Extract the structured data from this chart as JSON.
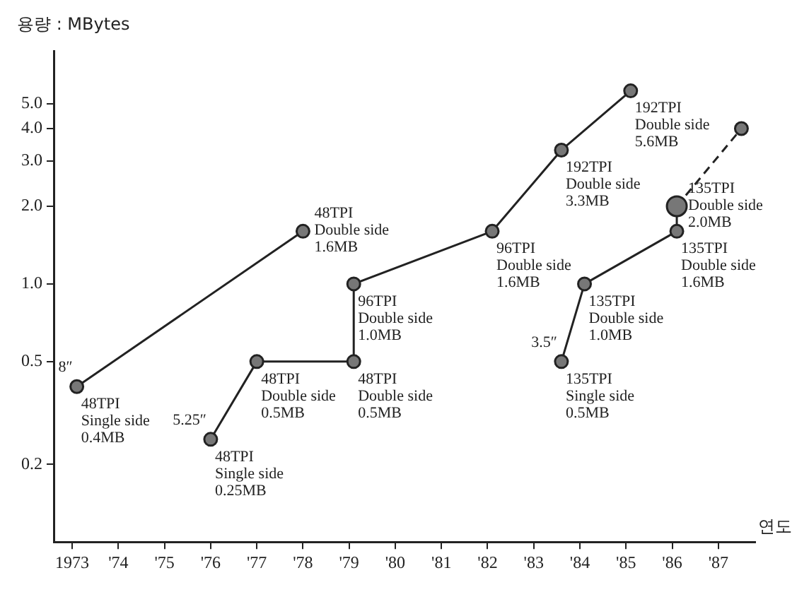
{
  "chart_data": {
    "type": "line",
    "xlabel": "연도",
    "ylabel": "용량 : MBytes",
    "log": "y",
    "grid": false,
    "legend": false,
    "marker": "circle",
    "line_style": "solid",
    "xlim": [
      1972.6,
      1987.8
    ],
    "xticks": [
      {
        "value": 1973,
        "label": "1973"
      },
      {
        "value": 1974,
        "label": "'74"
      },
      {
        "value": 1975,
        "label": "'75"
      },
      {
        "value": 1976,
        "label": "'76"
      },
      {
        "value": 1977,
        "label": "'77"
      },
      {
        "value": 1978,
        "label": "'78"
      },
      {
        "value": 1979,
        "label": "'79"
      },
      {
        "value": 1980,
        "label": "'80"
      },
      {
        "value": 1981,
        "label": "'81"
      },
      {
        "value": 1982,
        "label": "'82"
      },
      {
        "value": 1983,
        "label": "'83"
      },
      {
        "value": 1984,
        "label": "'84"
      },
      {
        "value": 1985,
        "label": "'85"
      },
      {
        "value": 1986,
        "label": "'86"
      },
      {
        "value": 1987,
        "label": "'87"
      }
    ],
    "ylim": [
      0.1,
      8
    ],
    "yticks": [
      {
        "value": 0.2,
        "label": "0.2"
      },
      {
        "value": 0.5,
        "label": "0.5"
      },
      {
        "value": 1,
        "label": "1.0"
      },
      {
        "value": 2,
        "label": "2.0"
      },
      {
        "value": 3,
        "label": "3.0"
      },
      {
        "value": 4,
        "label": "4.0"
      },
      {
        "value": 5,
        "label": "5.0"
      }
    ],
    "series": [
      {
        "name": "8″",
        "color": "#222222",
        "x": [
          1973.1,
          1978.0
        ],
        "values": [
          0.4,
          1.6
        ]
      },
      {
        "name": "5.25″",
        "color": "#222222",
        "x": [
          1976.0,
          1977.0,
          1979.1,
          1979.1,
          1982.1,
          1983.6,
          1985.1
        ],
        "values": [
          0.25,
          0.5,
          0.5,
          1.0,
          1.6,
          3.3,
          5.6
        ]
      },
      {
        "name": "3.5″",
        "color": "#222222",
        "x": [
          1983.6,
          1984.1,
          1986.1,
          1986.1
        ],
        "values": [
          0.5,
          1.0,
          1.6,
          2.0
        ]
      },
      {
        "color": "#222222",
        "line_style": "dashed",
        "x": [
          1986.1,
          1987.5
        ],
        "values": [
          2.0,
          4.0
        ]
      }
    ],
    "annotations": [
      {
        "text": "48TPI\nSingle side\n0.4MB",
        "x": 1973.1,
        "y": 0.4
      },
      {
        "text": "48TPI\nDouble side\n1.6MB",
        "x": 1978.0,
        "y": 1.6
      },
      {
        "text": "48TPI\nSingle side\n0.25MB",
        "x": 1976.0,
        "y": 0.25
      },
      {
        "text": "48TPI\nDouble side\n0.5MB",
        "x": 1977.0,
        "y": 0.5
      },
      {
        "text": "48TPI\nDouble side\n0.5MB",
        "x": 1979.1,
        "y": 0.5
      },
      {
        "text": "96TPI\nDouble side\n1.0MB",
        "x": 1979.1,
        "y": 1.0
      },
      {
        "text": "96TPI\nDouble side\n1.6MB",
        "x": 1982.1,
        "y": 1.6
      },
      {
        "text": "192TPI\nDouble side\n3.3MB",
        "x": 1983.6,
        "y": 3.3
      },
      {
        "text": "192TPI\nDouble side\n5.6MB",
        "x": 1985.1,
        "y": 5.6
      },
      {
        "text": "135TPI\nSingle side\n0.5MB",
        "x": 1983.6,
        "y": 0.5
      },
      {
        "text": "135TPI\nDouble side\n1.0MB",
        "x": 1984.1,
        "y": 1.0
      },
      {
        "text": "135TPI\nDouble side\n1.6MB",
        "x": 1986.1,
        "y": 1.6
      },
      {
        "text": "135TPI\nDouble side\n2.0MB",
        "x": 1986.1,
        "y": 2.0
      }
    ]
  }
}
